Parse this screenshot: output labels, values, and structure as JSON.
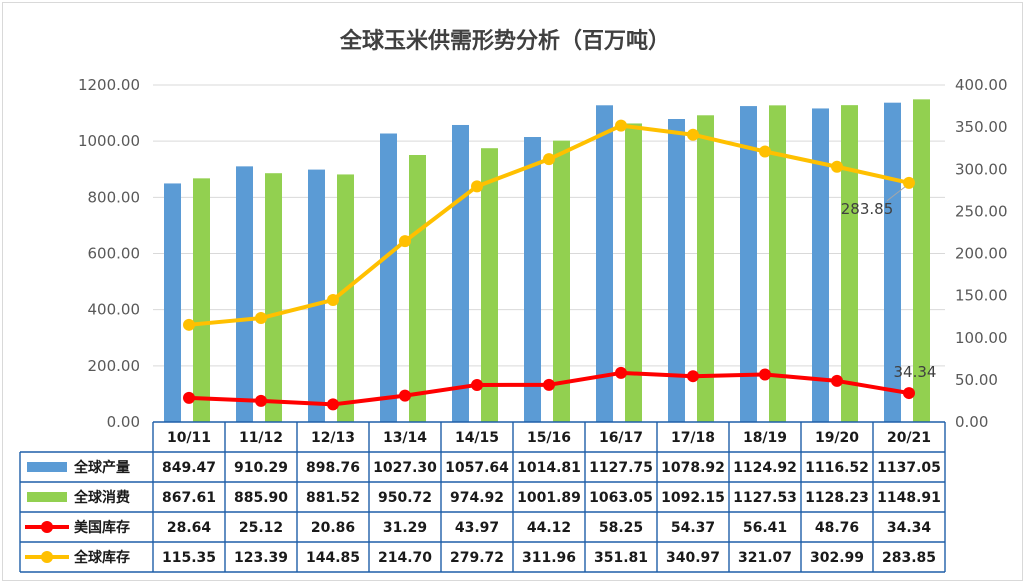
{
  "chart_data": {
    "type": "bar",
    "title": "全球玉米供需形势分析（百万吨）",
    "categories": [
      "10/11",
      "11/12",
      "12/13",
      "13/14",
      "14/15",
      "15/16",
      "16/17",
      "17/18",
      "18/19",
      "19/20",
      "20/21"
    ],
    "y_left": {
      "ylim": [
        0,
        1200
      ],
      "ticks": [
        "0.00",
        "200.00",
        "400.00",
        "600.00",
        "800.00",
        "1000.00",
        "1200.00"
      ]
    },
    "y_right": {
      "ylim": [
        0,
        400
      ],
      "ticks": [
        "0.00",
        "50.00",
        "100.00",
        "150.00",
        "200.00",
        "250.00",
        "300.00",
        "350.00",
        "400.00"
      ]
    },
    "series": [
      {
        "name": "全球产量",
        "kind": "bar",
        "axis": "left",
        "color": "#5b9bd5",
        "values": [
          849.47,
          910.29,
          898.76,
          1027.3,
          1057.64,
          1014.81,
          1127.75,
          1078.92,
          1124.92,
          1116.52,
          1137.05
        ],
        "labels": [
          "849.47",
          "910.29",
          "898.76",
          "1027.30",
          "1057.64",
          "1014.81",
          "1127.75",
          "1078.92",
          "1124.92",
          "1116.52",
          "1137.05"
        ]
      },
      {
        "name": "全球消费",
        "kind": "bar",
        "axis": "left",
        "color": "#92d050",
        "values": [
          867.61,
          885.9,
          881.52,
          950.72,
          974.92,
          1001.89,
          1063.05,
          1092.15,
          1127.53,
          1128.23,
          1148.91
        ],
        "labels": [
          "867.61",
          "885.90",
          "881.52",
          "950.72",
          "974.92",
          "1001.89",
          "1063.05",
          "1092.15",
          "1127.53",
          "1128.23",
          "1148.91"
        ]
      },
      {
        "name": "美国库存",
        "kind": "line",
        "axis": "right",
        "color": "#ff0000",
        "values": [
          28.64,
          25.12,
          20.86,
          31.29,
          43.97,
          44.12,
          58.25,
          54.37,
          56.41,
          48.76,
          34.34
        ],
        "labels": [
          "28.64",
          "25.12",
          "20.86",
          "31.29",
          "43.97",
          "44.12",
          "58.25",
          "54.37",
          "56.41",
          "48.76",
          "34.34"
        ]
      },
      {
        "name": "全球库存",
        "kind": "line",
        "axis": "right",
        "color": "#ffc000",
        "values": [
          115.35,
          123.39,
          144.85,
          214.7,
          279.72,
          311.96,
          351.81,
          340.97,
          321.07,
          302.99,
          283.85
        ],
        "labels": [
          "115.35",
          "123.39",
          "144.85",
          "214.70",
          "279.72",
          "311.96",
          "351.81",
          "340.97",
          "321.07",
          "302.99",
          "283.85"
        ]
      }
    ],
    "annotations": [
      {
        "series": "全球库存",
        "category": "20/21",
        "text": "283.85"
      },
      {
        "series": "美国库存",
        "category": "20/21",
        "text": "34.34"
      }
    ],
    "legend": "data-table"
  }
}
